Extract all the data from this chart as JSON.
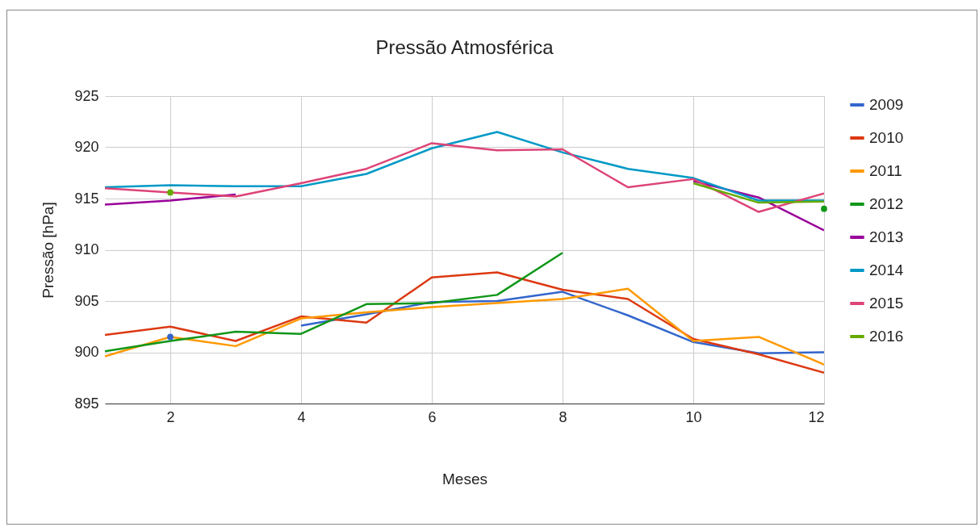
{
  "chart_data": {
    "type": "line",
    "title": "Pressão Atmosférica",
    "xlabel": "Meses",
    "ylabel": "Pressão [hPa]",
    "x": [
      1,
      2,
      3,
      4,
      5,
      6,
      7,
      8,
      9,
      10,
      11,
      12
    ],
    "series": [
      {
        "name": "2009",
        "color": "#3366cc",
        "values": [
          null,
          901.5,
          null,
          902.6,
          903.7,
          904.9,
          905.0,
          905.9,
          903.6,
          901.0,
          899.9,
          900.0
        ]
      },
      {
        "name": "2010",
        "color": "#dc3912",
        "values": [
          901.7,
          902.5,
          901.1,
          903.5,
          902.9,
          907.3,
          907.8,
          906.1,
          905.2,
          901.3,
          899.8,
          898.0
        ]
      },
      {
        "name": "2011",
        "color": "#ff9900",
        "values": [
          899.6,
          901.5,
          900.6,
          903.3,
          903.9,
          904.4,
          904.8,
          905.2,
          906.2,
          901.1,
          901.5,
          898.8
        ]
      },
      {
        "name": "2012",
        "color": "#109618",
        "values": [
          900.1,
          901.1,
          902.0,
          901.8,
          904.7,
          904.8,
          905.6,
          909.7,
          null,
          null,
          null,
          914.0
        ]
      },
      {
        "name": "2013",
        "color": "#990099",
        "values": [
          914.4,
          914.8,
          915.4,
          null,
          null,
          null,
          null,
          null,
          null,
          916.7,
          915.1,
          911.9
        ]
      },
      {
        "name": "2014",
        "color": "#0099c6",
        "values": [
          916.1,
          916.3,
          916.2,
          916.2,
          917.4,
          919.9,
          921.5,
          919.5,
          917.9,
          917.0,
          914.8,
          914.8
        ]
      },
      {
        "name": "2015",
        "color": "#dd4477",
        "values": [
          916.0,
          915.6,
          915.2,
          916.5,
          917.9,
          920.4,
          919.7,
          919.8,
          916.1,
          916.9,
          913.7,
          915.5
        ]
      },
      {
        "name": "2016",
        "color": "#66aa00",
        "values": [
          null,
          915.6,
          null,
          null,
          null,
          null,
          null,
          null,
          null,
          916.5,
          914.6,
          914.7
        ]
      }
    ],
    "xlim": [
      1,
      12
    ],
    "xticks": [
      2,
      4,
      6,
      8,
      10,
      12
    ],
    "ylim": [
      895,
      925
    ],
    "yticks": [
      895,
      900,
      905,
      910,
      915,
      920,
      925
    ],
    "grid": true,
    "legend": "right",
    "marker": "none",
    "line_style": "solid"
  }
}
